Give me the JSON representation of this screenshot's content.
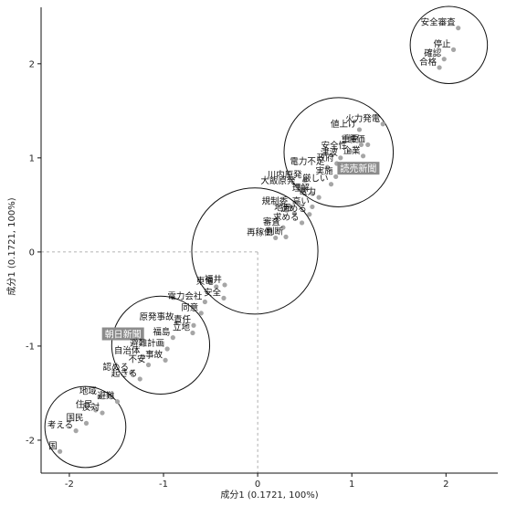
{
  "chart_data": {
    "type": "scatter",
    "title": "",
    "xlabel": "成分1 (0.1721, 100%)",
    "ylabel": "成分1 (0.1721, 100%)",
    "xlim": [
      -2.3,
      2.55
    ],
    "ylim": [
      -2.35,
      2.6
    ],
    "xticks": [
      "-2",
      "-1",
      "0",
      "1",
      "2"
    ],
    "yticks": [
      "-2",
      "-1",
      "0",
      "1",
      "2"
    ],
    "xtick_values": [
      -2,
      -1,
      0,
      1,
      2
    ],
    "ytick_values": [
      -2,
      -1,
      0,
      1,
      2
    ],
    "grid": false,
    "reference_lines": {
      "x": 0,
      "y": 0,
      "style": "dashed"
    },
    "clusters": [
      {
        "cx": -1.03,
        "cy": 2.2,
        "r": 0.4
      },
      {
        "cx": 0.75,
        "cy": 0.1,
        "r": 0.7
      },
      {
        "cx": 1.9,
        "cy": 1.2,
        "r": 0.75
      },
      {
        "cx": 1.35,
        "cy": 1.1,
        "r": 0.6
      },
      {
        "cx": 0.86,
        "cy": 2.2,
        "r": 0.4
      }
    ],
    "circles": [
      {
        "cx": 2.03,
        "cy": 2.2,
        "r": 0.41
      },
      {
        "cx": 0.86,
        "cy": 1.06,
        "r": 0.58
      },
      {
        "cx": -0.03,
        "cy": 0.01,
        "r": 0.67
      },
      {
        "cx": -1.03,
        "cy": -0.99,
        "r": 0.52
      },
      {
        "cx": -1.83,
        "cy": -1.86,
        "r": 0.43
      }
    ],
    "series_color": "#a6a6a6",
    "points": [
      {
        "label": "安全審査",
        "x": 2.13,
        "y": 2.38
      },
      {
        "label": "停止",
        "x": 2.08,
        "y": 2.15
      },
      {
        "label": "確認",
        "x": 1.98,
        "y": 2.05
      },
      {
        "label": "合格",
        "x": 1.93,
        "y": 1.96
      },
      {
        "label": "値上げ",
        "x": 1.08,
        "y": 1.3
      },
      {
        "label": "火力発電",
        "x": 1.33,
        "y": 1.36
      },
      {
        "label": "重要",
        "x": 1.1,
        "y": 1.14
      },
      {
        "label": "評価",
        "x": 1.17,
        "y": 1.14
      },
      {
        "label": "安全性",
        "x": 0.98,
        "y": 1.07
      },
      {
        "label": "企業",
        "x": 1.12,
        "y": 1.02
      },
      {
        "label": "津波",
        "x": 0.88,
        "y": 1.0
      },
      {
        "label": "政府",
        "x": 0.84,
        "y": 0.94
      },
      {
        "label": "電力不足",
        "x": 0.74,
        "y": 0.9
      },
      {
        "label": "読売新聞",
        "x": 1.07,
        "y": 0.89,
        "highlight": true
      },
      {
        "label": "実施",
        "x": 0.83,
        "y": 0.8
      },
      {
        "label": "厳しい",
        "x": 0.78,
        "y": 0.72
      },
      {
        "label": "川内原発",
        "x": 0.5,
        "y": 0.76
      },
      {
        "label": "大飯原発",
        "x": 0.43,
        "y": 0.7
      },
      {
        "label": "理解",
        "x": 0.58,
        "y": 0.62
      },
      {
        "label": "電力",
        "x": 0.65,
        "y": 0.58
      },
      {
        "label": "規制委",
        "x": 0.35,
        "y": 0.48
      },
      {
        "label": "高い",
        "x": 0.58,
        "y": 0.48
      },
      {
        "label": "地元",
        "x": 0.39,
        "y": 0.41
      },
      {
        "label": "進める",
        "x": 0.55,
        "y": 0.4
      },
      {
        "label": "求める",
        "x": 0.47,
        "y": 0.31
      },
      {
        "label": "審査",
        "x": 0.27,
        "y": 0.26
      },
      {
        "label": "再稼働",
        "x": 0.19,
        "y": 0.15
      },
      {
        "label": "判断",
        "x": 0.3,
        "y": 0.16
      },
      {
        "label": "東電",
        "x": -0.44,
        "y": -0.37
      },
      {
        "label": "福井",
        "x": -0.35,
        "y": -0.35
      },
      {
        "label": "電力会社",
        "x": -0.56,
        "y": -0.53
      },
      {
        "label": "安全",
        "x": -0.36,
        "y": -0.49
      },
      {
        "label": "同意",
        "x": -0.6,
        "y": -0.65
      },
      {
        "label": "原発事故",
        "x": -0.86,
        "y": -0.75
      },
      {
        "label": "責任",
        "x": -0.68,
        "y": -0.78
      },
      {
        "label": "立地",
        "x": -0.69,
        "y": -0.86
      },
      {
        "label": "朝日新聞",
        "x": -1.43,
        "y": -0.87,
        "highlight": true
      },
      {
        "label": "福島",
        "x": -0.9,
        "y": -0.91
      },
      {
        "label": "避難計画",
        "x": -0.96,
        "y": -1.03
      },
      {
        "label": "自治体",
        "x": -1.22,
        "y": -1.11
      },
      {
        "label": "事故",
        "x": -0.98,
        "y": -1.15
      },
      {
        "label": "不安",
        "x": -1.16,
        "y": -1.2
      },
      {
        "label": "認める",
        "x": -1.34,
        "y": -1.28
      },
      {
        "label": "起きる",
        "x": -1.25,
        "y": -1.35
      },
      {
        "label": "地域",
        "x": -1.68,
        "y": -1.54
      },
      {
        "label": "避難",
        "x": -1.49,
        "y": -1.59
      },
      {
        "label": "住民",
        "x": -1.72,
        "y": -1.68
      },
      {
        "label": "反対",
        "x": -1.65,
        "y": -1.71
      },
      {
        "label": "国民",
        "x": -1.82,
        "y": -1.82
      },
      {
        "label": "考える",
        "x": -1.93,
        "y": -1.9
      },
      {
        "label": "国",
        "x": -2.1,
        "y": -2.12
      }
    ]
  }
}
